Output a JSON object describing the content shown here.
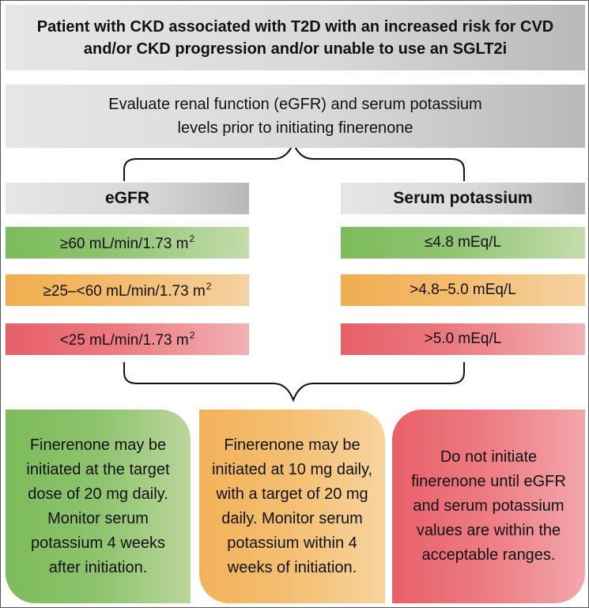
{
  "title": "Patient with CKD associated with T2D with an increased risk for CVD and/or CKD progression and/or unable to use an SGLT2i",
  "evaluate": "Evaluate renal function (eGFR) and serum potassium levels prior to initiating finerenone",
  "egfr": {
    "heading": "eGFR",
    "rows": [
      {
        "text": "≥60 mL/min/1.73 m",
        "sup": "2",
        "color": "#7dbb5c"
      },
      {
        "text": "≥25–<60 mL/min/1.73 m",
        "sup": "2",
        "color": "#f0ad50"
      },
      {
        "text": "<25 mL/min/1.73 m",
        "sup": "2",
        "color": "#e85f68"
      }
    ]
  },
  "potassium": {
    "heading": "Serum potassium",
    "rows": [
      {
        "text": "≤4.8 mEq/L",
        "color": "#7dbb5c"
      },
      {
        "text": ">4.8–5.0 mEq/L",
        "color": "#f0ad50"
      },
      {
        "text": ">5.0 mEq/L",
        "color": "#e85f68"
      }
    ]
  },
  "outcomes": [
    {
      "text": "Finerenone may be initiated at the target dose of 20 mg daily. Monitor serum potassium 4 weeks after initiation.",
      "color": "#7dbb5c"
    },
    {
      "text": "Finerenone may be initiated at 10 mg daily, with a target of 20 mg daily. Monitor serum potassium within 4 weeks of initiation.",
      "color": "#f0ad50"
    },
    {
      "text": "Do not initiate finerenone until eGFR and serum potassium values are within the acceptable ranges.",
      "color": "#e85f68"
    }
  ]
}
